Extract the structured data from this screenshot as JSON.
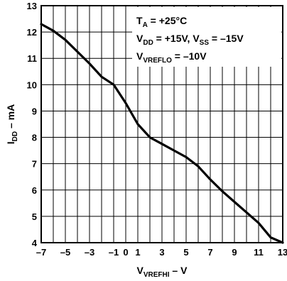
{
  "chart_data": {
    "type": "line",
    "xlabel": {
      "main": "V",
      "sub": "VREFHI",
      "suffix": " – V"
    },
    "ylabel": {
      "main": "I",
      "sub": "DD",
      "suffix": " – mA"
    },
    "xlim": [
      -7,
      13
    ],
    "ylim": [
      4,
      13
    ],
    "x_ticks": [
      -7,
      -5,
      -3,
      -1,
      0,
      1,
      3,
      5,
      7,
      9,
      11,
      13
    ],
    "x_tick_labels": [
      "–7",
      "–5",
      "–3",
      "–1",
      "0",
      "1",
      "3",
      "5",
      "7",
      "9",
      "11",
      "13"
    ],
    "y_ticks": [
      4,
      5,
      6,
      7,
      8,
      9,
      10,
      11,
      12,
      13
    ],
    "y_tick_labels": [
      "4",
      "5",
      "6",
      "7",
      "8",
      "9",
      "10",
      "11",
      "12",
      "13"
    ],
    "grid": true,
    "annotations": [
      [
        {
          "t": "T"
        },
        {
          "t": "A",
          "sub": true
        },
        {
          "t": " = +25°C"
        }
      ],
      [
        {
          "t": "V"
        },
        {
          "t": "DD",
          "sub": true
        },
        {
          "t": " = +15V, V"
        },
        {
          "t": "SS",
          "sub": true
        },
        {
          "t": " = –15V"
        }
      ],
      [
        {
          "t": "V"
        },
        {
          "t": "VREFLO",
          "sub": true
        },
        {
          "t": " = –10V"
        }
      ]
    ],
    "series": [
      {
        "x": [
          -7,
          -6,
          -5,
          -4,
          -3,
          -2,
          -1,
          0,
          1,
          2,
          3,
          4,
          5,
          6,
          7,
          8,
          9,
          10,
          11,
          12,
          13
        ],
        "y": [
          12.3,
          12.05,
          11.7,
          11.25,
          10.8,
          10.3,
          10.0,
          9.3,
          8.5,
          8.0,
          7.75,
          7.5,
          7.25,
          6.9,
          6.4,
          5.95,
          5.55,
          5.15,
          4.75,
          4.2,
          4.0
        ]
      }
    ]
  }
}
